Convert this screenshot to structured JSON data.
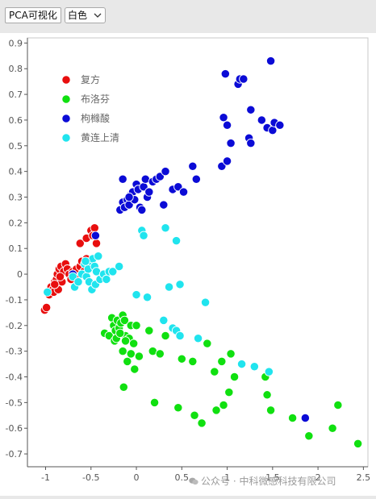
{
  "toolbar": {
    "pca_button_label": "PCA可视化",
    "color_select_value": "白色"
  },
  "watermark": {
    "text": "公众号 · 中科微感科技有限公司"
  },
  "chart_data": {
    "type": "scatter",
    "xlim": [
      -1.2,
      2.55
    ],
    "ylim": [
      -0.75,
      0.92
    ],
    "x_ticks": [
      -1,
      -0.5,
      0,
      0.5,
      1,
      1.5,
      2,
      2.5
    ],
    "x_tick_labels": [
      "-1",
      "-0.5",
      "0",
      "0.5",
      "1",
      "1.5",
      "2",
      "2.5"
    ],
    "y_ticks": [
      0.9,
      0.8,
      0.7,
      0.6,
      0.5,
      0.4,
      0.3,
      0.2,
      0.1,
      0,
      -0.1,
      -0.2,
      -0.3,
      -0.4,
      -0.5,
      -0.6,
      -0.7
    ],
    "y_tick_labels": [
      "0.9",
      "0.8",
      "0.7",
      "0.6",
      "0.5",
      "0.4",
      "0.3",
      "0.2",
      "0.1",
      "0",
      "-0.1",
      "-0.2",
      "-0.3",
      "-0.4",
      "-0.5",
      "-0.6",
      "-0.7"
    ],
    "grid": false,
    "legend_position": "top-left",
    "series": [
      {
        "name": "复方",
        "color": "#e80e0e",
        "points": [
          [
            -1.01,
            -0.14
          ],
          [
            -0.99,
            -0.13
          ],
          [
            -0.96,
            -0.08
          ],
          [
            -0.94,
            -0.05
          ],
          [
            -0.92,
            -0.06
          ],
          [
            -0.9,
            -0.03
          ],
          [
            -0.88,
            -0.02
          ],
          [
            -0.91,
            -0.07
          ],
          [
            -0.87,
            0.0
          ],
          [
            -0.85,
            0.02
          ],
          [
            -0.83,
            0.03
          ],
          [
            -0.86,
            -0.06
          ],
          [
            -0.82,
            -0.03
          ],
          [
            -0.8,
            0.01
          ],
          [
            -0.78,
            0.04
          ],
          [
            -0.76,
            0.02
          ],
          [
            -0.74,
            0.0
          ],
          [
            -0.72,
            -0.02
          ],
          [
            -0.7,
            0.01
          ],
          [
            -0.66,
            0.02
          ],
          [
            -0.62,
            0.03
          ],
          [
            -0.6,
            0.05
          ],
          [
            -0.64,
            -0.01
          ],
          [
            -0.58,
            0.01
          ],
          [
            -0.55,
            0.06
          ],
          [
            -0.62,
            0.12
          ],
          [
            -0.55,
            0.14
          ],
          [
            -0.5,
            0.17
          ],
          [
            -0.46,
            0.18
          ],
          [
            -0.48,
            0.15
          ],
          [
            -0.44,
            0.12
          ],
          [
            -0.9,
            -0.04
          ],
          [
            -0.84,
            -0.01
          ]
        ]
      },
      {
        "name": "布洛芬",
        "color": "#10e010",
        "points": [
          [
            -0.35,
            -0.23
          ],
          [
            -0.3,
            -0.24
          ],
          [
            -0.27,
            -0.17
          ],
          [
            -0.25,
            -0.2
          ],
          [
            -0.23,
            -0.22
          ],
          [
            -0.21,
            -0.18
          ],
          [
            -0.19,
            -0.21
          ],
          [
            -0.17,
            -0.19
          ],
          [
            -0.15,
            -0.16
          ],
          [
            -0.13,
            -0.18
          ],
          [
            -0.24,
            -0.26
          ],
          [
            -0.12,
            -0.24
          ],
          [
            -0.08,
            -0.25
          ],
          [
            -0.06,
            -0.2
          ],
          [
            -0.15,
            -0.3
          ],
          [
            -0.1,
            -0.34
          ],
          [
            -0.06,
            -0.31
          ],
          [
            -0.02,
            -0.37
          ],
          [
            0.03,
            -0.32
          ],
          [
            0.0,
            -0.2
          ],
          [
            -0.03,
            -0.27
          ],
          [
            0.18,
            -0.3
          ],
          [
            0.32,
            -0.24
          ],
          [
            0.26,
            -0.31
          ],
          [
            0.5,
            -0.33
          ],
          [
            0.62,
            -0.34
          ],
          [
            0.78,
            -0.27
          ],
          [
            0.86,
            -0.38
          ],
          [
            0.94,
            -0.34
          ],
          [
            1.04,
            -0.31
          ],
          [
            1.08,
            -0.4
          ],
          [
            1.02,
            -0.46
          ],
          [
            0.96,
            -0.51
          ],
          [
            0.88,
            -0.53
          ],
          [
            0.64,
            -0.55
          ],
          [
            0.72,
            -0.58
          ],
          [
            0.46,
            -0.52
          ],
          [
            0.2,
            -0.5
          ],
          [
            1.44,
            -0.47
          ],
          [
            1.48,
            -0.53
          ],
          [
            1.72,
            -0.56
          ],
          [
            1.9,
            -0.63
          ],
          [
            2.16,
            -0.6
          ],
          [
            2.22,
            -0.51
          ],
          [
            2.44,
            -0.66
          ],
          [
            1.42,
            -0.4
          ],
          [
            -0.14,
            -0.44
          ],
          [
            0.14,
            -0.22
          ],
          [
            -0.12,
            -0.26
          ],
          [
            -0.22,
            -0.25
          ],
          [
            -0.18,
            -0.23
          ]
        ]
      },
      {
        "name": "枸橼酸",
        "color": "#0b0bd6",
        "points": [
          [
            -0.45,
            0.15
          ],
          [
            -0.7,
            0.0
          ],
          [
            -0.18,
            0.25
          ],
          [
            -0.15,
            0.28
          ],
          [
            -0.13,
            0.26
          ],
          [
            -0.1,
            0.29
          ],
          [
            -0.08,
            0.27
          ],
          [
            -0.06,
            0.31
          ],
          [
            -0.04,
            0.32
          ],
          [
            -0.02,
            0.29
          ],
          [
            0.0,
            0.35
          ],
          [
            0.02,
            0.33
          ],
          [
            0.04,
            0.26
          ],
          [
            0.06,
            0.25
          ],
          [
            0.08,
            0.34
          ],
          [
            0.1,
            0.37
          ],
          [
            0.12,
            0.3
          ],
          [
            0.14,
            0.32
          ],
          [
            0.18,
            0.36
          ],
          [
            0.22,
            0.37
          ],
          [
            0.26,
            0.38
          ],
          [
            0.3,
            0.27
          ],
          [
            0.32,
            0.4
          ],
          [
            0.4,
            0.33
          ],
          [
            0.46,
            0.34
          ],
          [
            0.52,
            0.32
          ],
          [
            0.62,
            0.42
          ],
          [
            0.66,
            0.37
          ],
          [
            -0.15,
            0.37
          ],
          [
            -0.08,
            0.3
          ],
          [
            0.94,
            0.42
          ],
          [
            1.0,
            0.44
          ],
          [
            1.04,
            0.51
          ],
          [
            1.0,
            0.58
          ],
          [
            0.96,
            0.61
          ],
          [
            1.12,
            0.74
          ],
          [
            1.14,
            0.76
          ],
          [
            1.18,
            0.76
          ],
          [
            0.98,
            0.78
          ],
          [
            1.26,
            0.64
          ],
          [
            1.24,
            0.53
          ],
          [
            1.26,
            0.51
          ],
          [
            1.38,
            0.6
          ],
          [
            1.44,
            0.57
          ],
          [
            1.5,
            0.56
          ],
          [
            1.52,
            0.59
          ],
          [
            1.58,
            0.58
          ],
          [
            1.48,
            0.83
          ],
          [
            1.86,
            -0.56
          ]
        ]
      },
      {
        "name": "黄连上清",
        "color": "#20e4ee",
        "points": [
          [
            -0.98,
            -0.07
          ],
          [
            -0.7,
            -0.01
          ],
          [
            -0.68,
            -0.05
          ],
          [
            -0.64,
            -0.03
          ],
          [
            -0.6,
            0.0
          ],
          [
            -0.57,
            0.04
          ],
          [
            -0.55,
            -0.01
          ],
          [
            -0.53,
            0.02
          ],
          [
            -0.5,
            0.05
          ],
          [
            -0.48,
            0.06
          ],
          [
            -0.46,
            0.03
          ],
          [
            -0.44,
            0.01
          ],
          [
            -0.42,
            0.07
          ],
          [
            -0.52,
            -0.03
          ],
          [
            -0.49,
            -0.06
          ],
          [
            -0.45,
            -0.04
          ],
          [
            -0.4,
            -0.02
          ],
          [
            -0.36,
            0.0
          ],
          [
            -0.33,
            -0.02
          ],
          [
            -0.3,
            0.01
          ],
          [
            -0.26,
            0.01
          ],
          [
            -0.19,
            0.03
          ],
          [
            -0.56,
            0.05
          ],
          [
            0.06,
            0.17
          ],
          [
            0.08,
            0.15
          ],
          [
            0.32,
            0.18
          ],
          [
            0.44,
            0.13
          ],
          [
            0.0,
            -0.08
          ],
          [
            0.12,
            -0.09
          ],
          [
            0.36,
            -0.05
          ],
          [
            0.48,
            -0.04
          ],
          [
            0.76,
            -0.11
          ],
          [
            0.3,
            -0.18
          ],
          [
            0.4,
            -0.21
          ],
          [
            0.44,
            -0.22
          ],
          [
            0.48,
            -0.24
          ],
          [
            0.68,
            -0.25
          ],
          [
            1.16,
            -0.35
          ],
          [
            1.3,
            -0.36
          ],
          [
            1.46,
            -0.38
          ]
        ]
      }
    ]
  }
}
